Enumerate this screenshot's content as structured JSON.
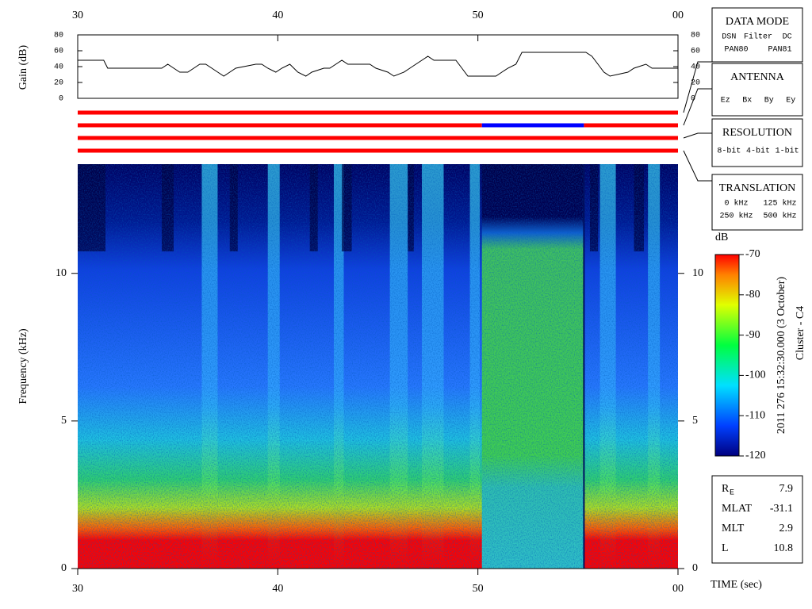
{
  "chart_data": [
    {
      "type": "line",
      "ylabel": "Gain (dB)",
      "xlim": [
        30,
        60
      ],
      "xticks": [
        30,
        40,
        50,
        {
          "value": 60,
          "label": "00"
        }
      ],
      "ylim": [
        0,
        80
      ],
      "yticks": [
        0,
        20,
        40,
        60,
        80
      ],
      "x": [
        30,
        31.3,
        31.5,
        34.2,
        34.5,
        34.8,
        35.1,
        35.5,
        35.8,
        36.1,
        36.4,
        36.7,
        37,
        37.3,
        37.6,
        37.9,
        38.9,
        39.2,
        39.5,
        39.9,
        40.2,
        40.6,
        41,
        41.4,
        41.7,
        42.3,
        42.6,
        42.9,
        43.2,
        43.5,
        44.6,
        44.9,
        45.5,
        45.8,
        46.3,
        46.6,
        46.9,
        47.2,
        47.5,
        47.8,
        48.9,
        49.2,
        49.5,
        49.9,
        50.9,
        51.2,
        51.5,
        51.9,
        52.2,
        55.4,
        55.7,
        56,
        56.3,
        56.6,
        57.5,
        57.8,
        58.4,
        58.7,
        60
      ],
      "series": [
        {
          "color": "#000000",
          "values": [
            48,
            48,
            38,
            38,
            43,
            38,
            33,
            33,
            38,
            43,
            43,
            38,
            33,
            28,
            33,
            38,
            43,
            43,
            38,
            33,
            38,
            43,
            33,
            28,
            33,
            38,
            38,
            43,
            48,
            43,
            43,
            38,
            33,
            28,
            33,
            38,
            43,
            48,
            53,
            48,
            48,
            38,
            28,
            28,
            28,
            33,
            38,
            43,
            58,
            58,
            53,
            43,
            33,
            28,
            33,
            38,
            43,
            38,
            38
          ]
        }
      ],
      "mode_bars": [
        [
          {
            "start": 30,
            "end": 60,
            "color": "#ff0000"
          }
        ],
        [
          {
            "start": 30,
            "end": 50.2,
            "color": "#ff0000"
          },
          {
            "start": 50.2,
            "end": 55.3,
            "color": "#0000ff"
          },
          {
            "start": 55.3,
            "end": 60,
            "color": "#ff0000"
          }
        ],
        [
          {
            "start": 30,
            "end": 60,
            "color": "#ff0000"
          }
        ],
        [
          {
            "start": 30,
            "end": 60,
            "color": "#ff0000"
          }
        ]
      ]
    },
    {
      "type": "spectrogram",
      "ylabel": "Frequency (kHz)",
      "xlabel": "TIME (sec)",
      "xlim": [
        30,
        60
      ],
      "xticks": [
        30,
        40,
        50,
        {
          "value": 60,
          "label": "00"
        }
      ],
      "ylim": [
        0,
        13.7
      ],
      "yticks": [
        0,
        5,
        10
      ],
      "colorbar": {
        "label": "dB",
        "lim": [
          -120,
          -70
        ],
        "ticks": [
          -120,
          -110,
          -100,
          -90,
          -80,
          -70
        ]
      },
      "timestamp": "2011 276 15:32:30.000 (3 October)",
      "spacecraft": "Cluster - C4"
    }
  ],
  "panels": [
    {
      "title": "DATA MODE",
      "rows": [
        [
          {
            "text": "DSN",
            "color": "#ff0000"
          },
          {
            "text": "Filter",
            "color": "#00d000"
          },
          {
            "text": "DC",
            "color": "#0000ff"
          }
        ],
        [
          {
            "text": "PAN80",
            "color": "#000000"
          },
          {
            "text": "PAN81",
            "color": "#00c0e0"
          }
        ]
      ]
    },
    {
      "title": "ANTENNA",
      "rows": [
        [
          {
            "text": "Ez",
            "color": "#ff0000"
          },
          {
            "text": "Bx",
            "color": "#00d000"
          },
          {
            "text": "By",
            "color": "#0000ff"
          },
          {
            "text": "Ey",
            "color": "#000000"
          }
        ]
      ]
    },
    {
      "title": "RESOLUTION",
      "rows": [
        [
          {
            "text": "8-bit",
            "color": "#ff0000"
          },
          {
            "text": "4-bit",
            "color": "#00d000"
          },
          {
            "text": "1-bit",
            "color": "#0000ff"
          }
        ]
      ]
    },
    {
      "title": "TRANSLATION",
      "rows": [
        [
          {
            "text": "0 kHz",
            "color": "#ff0000"
          },
          {
            "text": "125 kHz",
            "color": "#00d000"
          }
        ],
        [
          {
            "text": "250 kHz",
            "color": "#0000ff"
          },
          {
            "text": "500 kHz",
            "color": "#000000"
          }
        ]
      ]
    }
  ],
  "orbit": [
    {
      "label": "R",
      "sub": "E",
      "value": 7.9
    },
    {
      "label": "MLAT",
      "value": -31.1
    },
    {
      "label": "MLT",
      "value": 2.9
    },
    {
      "label": "L",
      "value": 10.8
    }
  ]
}
